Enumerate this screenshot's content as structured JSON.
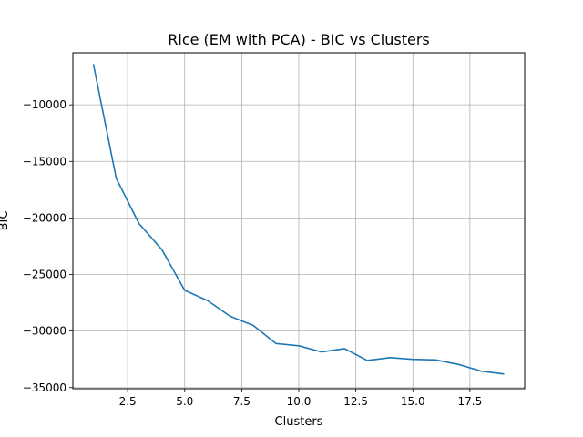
{
  "chart_data": {
    "type": "line",
    "title": "Rice (EM with PCA) - BIC vs Clusters",
    "xlabel": "Clusters",
    "ylabel": "BIC",
    "xlim": [
      0.1,
      19.9
    ],
    "ylim": [
      -35100,
      -5400
    ],
    "xticks": [
      2.5,
      5.0,
      7.5,
      10.0,
      12.5,
      15.0,
      17.5
    ],
    "xtick_labels": [
      "2.5",
      "5.0",
      "7.5",
      "10.0",
      "12.5",
      "15.0",
      "17.5"
    ],
    "yticks": [
      -10000,
      -15000,
      -20000,
      -25000,
      -30000,
      -35000
    ],
    "ytick_labels": [
      "−10000",
      "−15000",
      "−20000",
      "−25000",
      "−30000",
      "−35000"
    ],
    "grid": true,
    "series": [
      {
        "color": "#1f77b4",
        "x": [
          1,
          2,
          3,
          4,
          5,
          6,
          7,
          8,
          9,
          10,
          11,
          12,
          13,
          14,
          15,
          16,
          17,
          18,
          19
        ],
        "y": [
          -6400,
          -16500,
          -20500,
          -22800,
          -26400,
          -27300,
          -28700,
          -29500,
          -31100,
          -31300,
          -31850,
          -31550,
          -32600,
          -32350,
          -32500,
          -32550,
          -32950,
          -33550,
          -33800
        ]
      }
    ]
  }
}
